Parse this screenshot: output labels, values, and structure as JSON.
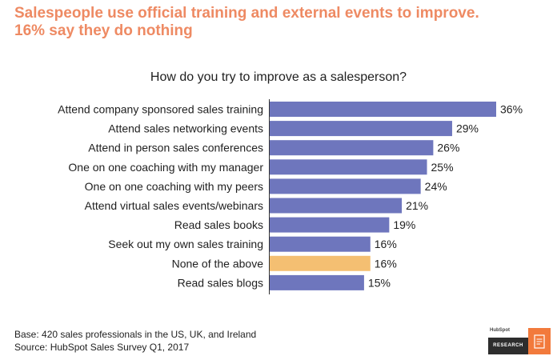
{
  "headline": {
    "line1": "Salespeople use official training and external events to improve.",
    "line2": "16% say they do nothing"
  },
  "chart_data": {
    "type": "bar",
    "orientation": "horizontal",
    "title": "How do you try to improve as a salesperson?",
    "categories": [
      "Attend company sponsored sales training",
      "Attend sales networking events",
      "Attend in person sales conferences",
      "One on one coaching with my manager",
      "One on one coaching with my peers",
      "Attend virtual sales events/webinars",
      "Read sales books",
      "Seek out my own sales training",
      "None of the above",
      "Read sales blogs"
    ],
    "values": [
      36,
      29,
      26,
      25,
      24,
      21,
      19,
      16,
      16,
      15
    ],
    "value_labels": [
      "36%",
      "29%",
      "26%",
      "25%",
      "24%",
      "21%",
      "19%",
      "16%",
      "16%",
      "15%"
    ],
    "unit": "%",
    "xlim": [
      0,
      40
    ],
    "grid": false,
    "legend": "none",
    "colors": {
      "bar": "#6e76bd",
      "highlight": "#f4bf72",
      "highlight_category": "None of the above"
    }
  },
  "footer": {
    "base": "Base: 420 sales professionals in the US, UK, and Ireland",
    "source": "Source: HubSpot Sales Survey Q1, 2017"
  },
  "logo": {
    "brand": "HubSpot",
    "label": "RESEARCH",
    "icon": "document-edit-icon"
  }
}
